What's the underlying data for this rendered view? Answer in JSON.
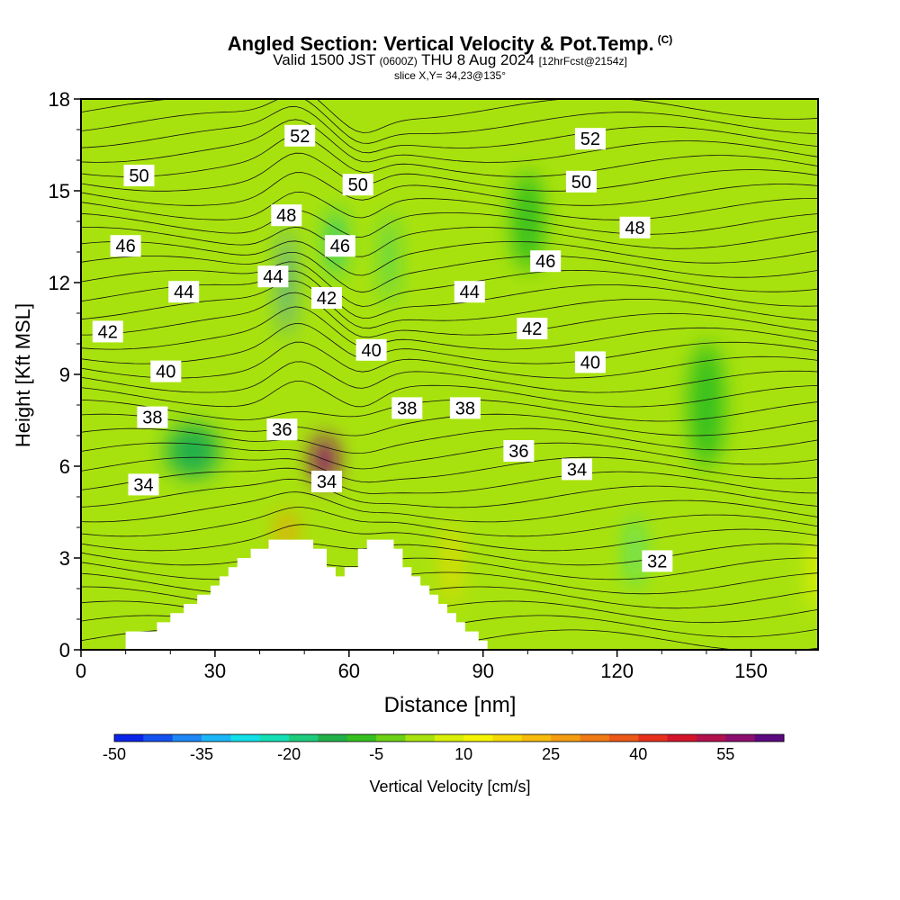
{
  "header": {
    "title": "Angled Section: Vertical Velocity & Pot.Temp.",
    "title_mark": "(C)",
    "valid_prefix": "Valid 1500 JST",
    "valid_utc": "(0600Z)",
    "valid_date": "THU 8 Aug 2024",
    "forecast_info": "[12hrFcst@2154z]",
    "slice_info": "slice X,Y= 34,23@135°"
  },
  "chart_data": {
    "type": "heatmap",
    "title": "Angled Section: Vertical Velocity & Pot.Temp.",
    "xlabel": "Distance [nm]",
    "ylabel": "Height [Kft MSL]",
    "xlim": [
      0,
      165
    ],
    "ylim": [
      0,
      18
    ],
    "x_ticks": [
      0,
      30,
      60,
      90,
      120,
      150
    ],
    "y_ticks": [
      0,
      3,
      6,
      9,
      12,
      15,
      18
    ],
    "fill_variable": "Vertical Velocity [cm/s]",
    "contour_variable": "Potential Temperature [C]",
    "colorbar": {
      "label": "Vertical Velocity [cm/s]",
      "tick_labels": [
        "-50",
        "-35",
        "-20",
        "-5",
        "10",
        "25",
        "40",
        "55"
      ],
      "tick_values": [
        -50,
        -35,
        -20,
        -5,
        10,
        25,
        40,
        55
      ],
      "levels": [
        -50,
        -45,
        -40,
        -35,
        -30,
        -25,
        -20,
        -15,
        -10,
        -5,
        0,
        5,
        10,
        15,
        20,
        25,
        30,
        35,
        40,
        45,
        50,
        55,
        60
      ],
      "colors": [
        "#0b24e8",
        "#1452f0",
        "#1f86f5",
        "#1bb6f8",
        "#12dfe8",
        "#13e0b4",
        "#1ccc7c",
        "#22b048",
        "#36c01f",
        "#6cd014",
        "#a8e20e",
        "#d9ef08",
        "#f4f404",
        "#f6d808",
        "#f7bb0c",
        "#f49c10",
        "#f07a14",
        "#ec5818",
        "#e6301a",
        "#d4142a",
        "#b3104e",
        "#8c0e6e",
        "#5c0a80"
      ]
    },
    "velocity_features": [
      {
        "x": 54.5,
        "y": 6.2,
        "value": 58
      },
      {
        "x": 46,
        "y": 3.9,
        "value": 25
      },
      {
        "x": 46,
        "y": 12,
        "value": -40
      },
      {
        "x": 57,
        "y": 13.3,
        "value": -18
      },
      {
        "x": 69,
        "y": 12.8,
        "value": -20
      },
      {
        "x": 124,
        "y": 3.2,
        "value": -25
      },
      {
        "x": 25,
        "y": 6.5,
        "value": -12
      },
      {
        "x": 83,
        "y": 2.8,
        "value": 15
      },
      {
        "x": 165,
        "y": 2.5,
        "value": 10
      },
      {
        "x": 100,
        "y": 14,
        "value": -6
      },
      {
        "x": 140,
        "y": 8,
        "value": -8
      }
    ],
    "contour_labels": [
      {
        "text": "52",
        "x": 49,
        "y": 16.8
      },
      {
        "text": "52",
        "x": 114,
        "y": 16.7
      },
      {
        "text": "50",
        "x": 13,
        "y": 15.5
      },
      {
        "text": "50",
        "x": 62,
        "y": 15.2
      },
      {
        "text": "50",
        "x": 112,
        "y": 15.3
      },
      {
        "text": "48",
        "x": 46,
        "y": 14.2
      },
      {
        "text": "48",
        "x": 124,
        "y": 13.8
      },
      {
        "text": "46",
        "x": 10,
        "y": 13.2
      },
      {
        "text": "46",
        "x": 58,
        "y": 13.2
      },
      {
        "text": "46",
        "x": 104,
        "y": 12.7
      },
      {
        "text": "44",
        "x": 43,
        "y": 12.2
      },
      {
        "text": "44",
        "x": 23,
        "y": 11.7
      },
      {
        "text": "44",
        "x": 87,
        "y": 11.7
      },
      {
        "text": "42",
        "x": 55,
        "y": 11.5
      },
      {
        "text": "42",
        "x": 6,
        "y": 10.4
      },
      {
        "text": "42",
        "x": 101,
        "y": 10.5
      },
      {
        "text": "40",
        "x": 65,
        "y": 9.8
      },
      {
        "text": "40",
        "x": 19,
        "y": 9.1
      },
      {
        "text": "40",
        "x": 114,
        "y": 9.4
      },
      {
        "text": "38",
        "x": 16,
        "y": 7.6
      },
      {
        "text": "38",
        "x": 73,
        "y": 7.9
      },
      {
        "text": "38",
        "x": 86,
        "y": 7.9
      },
      {
        "text": "36",
        "x": 45,
        "y": 7.2
      },
      {
        "text": "36",
        "x": 98,
        "y": 6.5
      },
      {
        "text": "34",
        "x": 55,
        "y": 5.5
      },
      {
        "text": "34",
        "x": 14,
        "y": 5.4
      },
      {
        "text": "34",
        "x": 111,
        "y": 5.9
      },
      {
        "text": "32",
        "x": 129,
        "y": 2.9
      }
    ],
    "terrain": [
      [
        10,
        0.6
      ],
      [
        17,
        0.6
      ],
      [
        17,
        0.9
      ],
      [
        20,
        0.9
      ],
      [
        20,
        1.2
      ],
      [
        23,
        1.2
      ],
      [
        23,
        1.5
      ],
      [
        26,
        1.5
      ],
      [
        26,
        1.8
      ],
      [
        29,
        1.8
      ],
      [
        29,
        2.1
      ],
      [
        31,
        2.1
      ],
      [
        31,
        2.4
      ],
      [
        33,
        2.4
      ],
      [
        33,
        2.7
      ],
      [
        35,
        2.7
      ],
      [
        35,
        3.0
      ],
      [
        38,
        3.0
      ],
      [
        38,
        3.3
      ],
      [
        42,
        3.3
      ],
      [
        42,
        3.6
      ],
      [
        52,
        3.6
      ],
      [
        52,
        3.3
      ],
      [
        55,
        3.3
      ],
      [
        55,
        2.7
      ],
      [
        57,
        2.7
      ],
      [
        57,
        2.4
      ],
      [
        59,
        2.4
      ],
      [
        59,
        2.7
      ],
      [
        62,
        2.7
      ],
      [
        62,
        3.3
      ],
      [
        64,
        3.3
      ],
      [
        64,
        3.6
      ],
      [
        70,
        3.6
      ],
      [
        70,
        3.3
      ],
      [
        72,
        3.3
      ],
      [
        72,
        2.7
      ],
      [
        74,
        2.7
      ],
      [
        74,
        2.4
      ],
      [
        76,
        2.4
      ],
      [
        76,
        2.1
      ],
      [
        78,
        2.1
      ],
      [
        78,
        1.8
      ],
      [
        80,
        1.8
      ],
      [
        80,
        1.5
      ],
      [
        82,
        1.5
      ],
      [
        82,
        1.2
      ],
      [
        84,
        1.2
      ],
      [
        84,
        0.9
      ],
      [
        86,
        0.9
      ],
      [
        86,
        0.6
      ],
      [
        89,
        0.6
      ],
      [
        89,
        0.3
      ],
      [
        91,
        0.3
      ],
      [
        91,
        0
      ]
    ],
    "grid": false,
    "legend": "bottom"
  }
}
